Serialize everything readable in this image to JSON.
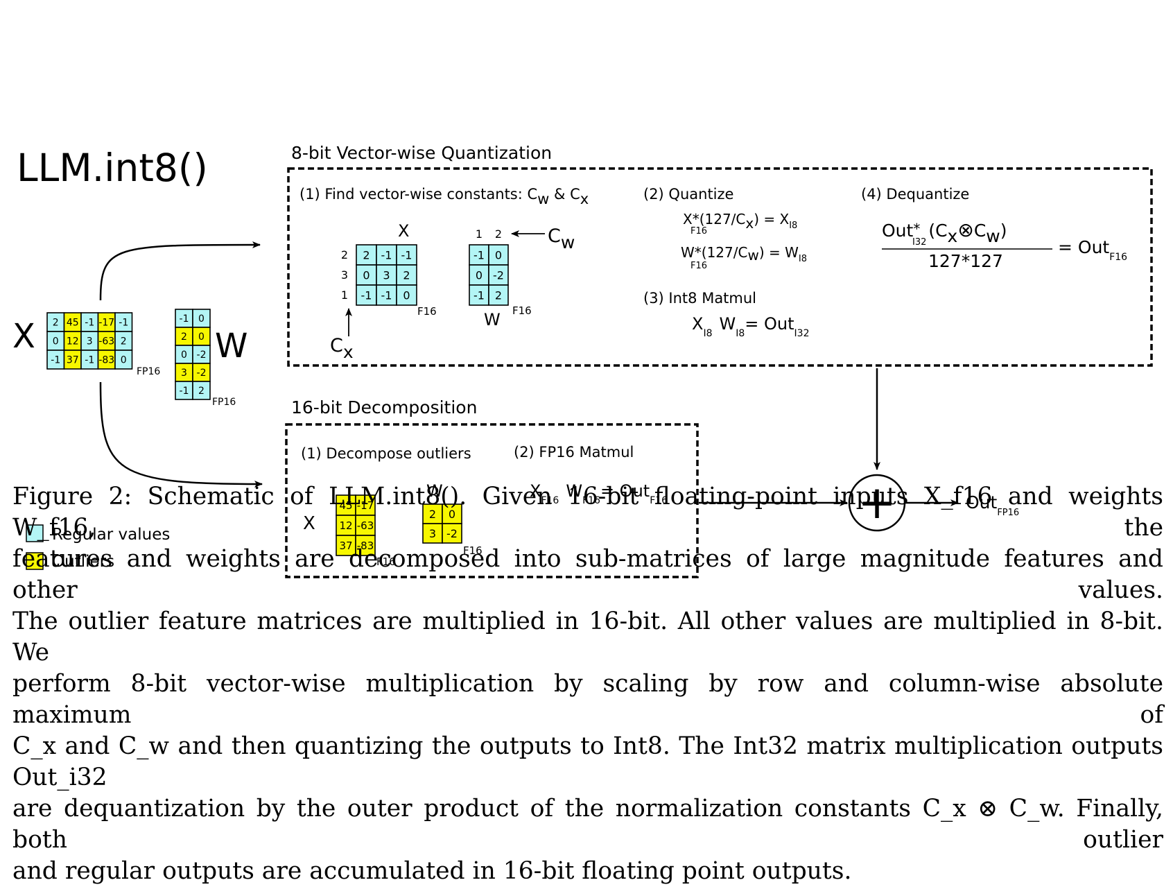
{
  "figure": {
    "title": "LLM.int8()",
    "input": {
      "x_label": "X",
      "w_label": "W",
      "x_matrix": [
        [
          "2",
          "45",
          "-1",
          "-17",
          "-1"
        ],
        [
          "0",
          "12",
          "3",
          "-63",
          "2"
        ],
        [
          "-1",
          "37",
          "-1",
          "-83",
          "0"
        ]
      ],
      "x_outlier_cols": [
        1,
        3
      ],
      "x_dtype": "FP16",
      "w_matrix": [
        [
          "-1",
          "0"
        ],
        [
          "2",
          "0"
        ],
        [
          "0",
          "-2"
        ],
        [
          "3",
          "-2"
        ],
        [
          "-1",
          "2"
        ]
      ],
      "w_outlier_rows": [
        1,
        3
      ],
      "w_dtype": "FP16"
    },
    "legend": {
      "regular": "Regular values",
      "outliers": "Outliers",
      "regular_color": "#b3f5f5",
      "outlier_color": "#f7f700"
    },
    "quant": {
      "title": "8-bit Vector-wise Quantization",
      "step1": {
        "prefix": "(1) Find vector-wise constants: C",
        "sub1": "w",
        "mid": " & C",
        "sub2": "x"
      },
      "x_label": "X",
      "x_matrix": [
        [
          "2",
          "-1",
          "-1"
        ],
        [
          "0",
          "3",
          "2"
        ],
        [
          "-1",
          "-1",
          "0"
        ]
      ],
      "x_row_consts": [
        "2",
        "3",
        "1"
      ],
      "x_dtype": "F16",
      "cx_label": "C",
      "cx_sub": "x",
      "w_label": "W",
      "w_matrix": [
        [
          "-1",
          "0"
        ],
        [
          "0",
          "-2"
        ],
        [
          "-1",
          "2"
        ]
      ],
      "w_col_consts": [
        "1",
        "2"
      ],
      "w_dtype": "F16",
      "cw_label": "C",
      "cw_sub": "w",
      "step2_title": "(2) Quantize",
      "q1": {
        "a": "X",
        "a_sub": "F16",
        "op": "*",
        "b": "(127/C",
        "b_sub": "x",
        "c": ") = X",
        "c_sub": "I8"
      },
      "q2": {
        "a": "W",
        "a_sub": "F16",
        "op": "*",
        "b": "(127/C",
        "b_sub": "w",
        "c": ") = W",
        "c_sub": "I8"
      },
      "step3_title": "(3) Int8 Matmul",
      "mm": {
        "a": "X",
        "a_sub": "I8",
        "b": "W",
        "b_sub": "I8",
        "c": "= Out",
        "c_sub": "I32"
      },
      "step4_title": "(4) Dequantize",
      "deq": {
        "num_a": "Out",
        "num_a_sub": "I32",
        "num_op": "*",
        "num_b": "(C",
        "num_b_sub": "x",
        "otimes": "⊗",
        "num_c": "C",
        "num_c_sub": "w",
        "num_d": ")",
        "den": "127*127",
        "res": "= Out",
        "res_sub": "F16"
      }
    },
    "decomp": {
      "title": "16-bit Decomposition",
      "step1_title": "(1) Decompose outliers",
      "x_label": "X",
      "x_matrix": [
        [
          "45",
          "-17"
        ],
        [
          "12",
          "-63"
        ],
        [
          "37",
          "-83"
        ]
      ],
      "x_dtype": "F16",
      "w_label": "W",
      "w_matrix": [
        [
          "2",
          "0"
        ],
        [
          "3",
          "-2"
        ]
      ],
      "w_dtype": "F16",
      "step2_title": "(2) FP16 Matmul",
      "mm": {
        "a": "X",
        "a_sub": "F16",
        "b": "W",
        "b_sub": "F16",
        "c": "= Out",
        "c_sub": "F16"
      }
    },
    "output": {
      "plus": "+",
      "label": "Out",
      "sub": "FP16"
    }
  },
  "caption": [
    "Figure 2: Schematic of LLM.int8(). Given 16-bit floating-point inputs X_f16 and weights W_f16, the",
    "features and weights are decomposed into sub-matrices of large magnitude features and other values.",
    "The outlier feature matrices are multiplied in 16-bit. All other values are multiplied in 8-bit. We",
    "perform 8-bit vector-wise multiplication by scaling by row and column-wise absolute maximum of",
    "C_x and C_w and then quantizing the outputs to Int8. The Int32 matrix multiplication outputs Out_i32",
    "are dequantization by the outer product of the normalization constants C_x ⊗ C_w. Finally, both outlier",
    "and regular outputs are accumulated in 16-bit floating point outputs."
  ]
}
